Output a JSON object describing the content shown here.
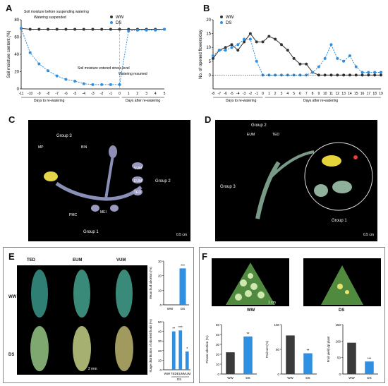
{
  "panels": {
    "A": {
      "letter": "A",
      "ylabel": "Soil moisture content (%)",
      "legend": [
        "WW",
        "DS"
      ],
      "annotations": [
        "Soil moisture before suspending watering",
        "Watering suspended",
        "Soil moisture entered stress level",
        "Watering resumed"
      ],
      "xaxis_left": "Days to re-watering",
      "xaxis_right": "Days after re-watering"
    },
    "B": {
      "letter": "B",
      "ylabel": "No. of opened flowers/day",
      "legend": [
        "WW",
        "DS"
      ],
      "xaxis_left": "Days to re-watering",
      "xaxis_right": "Days after re-watering"
    },
    "C": {
      "letter": "C",
      "labels": [
        "Group 3",
        "MP",
        "BIN",
        "VUM",
        "EUM",
        "TED",
        "Group 2",
        "PMC",
        "MEI",
        "Group 1"
      ],
      "scale": "0.5 cm"
    },
    "D": {
      "letter": "D",
      "labels": [
        "Group 2",
        "EUM",
        "TED",
        "Group 3",
        "Group 1"
      ],
      "scale": "0.5 cm"
    },
    "E": {
      "letter": "E",
      "col_labels": [
        "TED",
        "EUM",
        "VUM"
      ],
      "row_labels": [
        "WW",
        "DS"
      ],
      "scale": "2 mm",
      "top_ylabel": "Mean bud abortion (%)",
      "bottom_ylabel": "Stage distribution of aborted buds (%)",
      "ds_group": "DS"
    },
    "F": {
      "letter": "F",
      "photo_labels": [
        "WW",
        "DS"
      ],
      "scale": "1 cm",
      "ylabels": [
        "Flower abortion (%)",
        "Fruit set (%)",
        "Fruit yield /g/ plant"
      ]
    }
  },
  "chart_data": [
    {
      "type": "line",
      "title": "",
      "ylabel": "Soil moisture content (%)",
      "x": [
        -11,
        -10,
        -9,
        -8,
        -7,
        -6,
        -5,
        -4,
        -3,
        -2,
        -1,
        0,
        1,
        2,
        3,
        4,
        5
      ],
      "xticks": [
        "-11",
        "-10",
        "-9",
        "-8",
        "-7",
        "-6",
        "-5",
        "-4",
        "-3",
        "-2",
        "-1",
        "0",
        "1",
        "2",
        "3",
        "4",
        "5"
      ],
      "ylim": [
        0,
        80
      ],
      "yticks": [
        0,
        20,
        40,
        60,
        80
      ],
      "series": [
        {
          "name": "WW",
          "color": "#333333",
          "values": [
            70,
            69,
            69,
            69,
            69,
            69,
            69,
            69,
            69,
            69,
            69,
            69,
            69,
            69,
            69,
            69,
            69
          ]
        },
        {
          "name": "DS",
          "color": "#2f8fe0",
          "values": [
            70,
            42,
            29,
            21,
            15,
            11,
            9,
            6,
            5,
            5,
            5,
            5,
            67,
            68,
            68,
            68,
            69
          ]
        }
      ]
    },
    {
      "type": "line",
      "title": "",
      "ylabel": "No. of opened flowers/day",
      "x": [
        -8,
        -7,
        -6,
        -5,
        -4,
        -3,
        -2,
        -1,
        0,
        1,
        2,
        3,
        4,
        5,
        6,
        7,
        8,
        9,
        10,
        11,
        12,
        13,
        14,
        15,
        16,
        17,
        18,
        19
      ],
      "xticks": [
        "-8",
        "-7",
        "-6",
        "-5",
        "-4",
        "-3",
        "-2",
        "-1",
        "0",
        "1",
        "2",
        "3",
        "4",
        "5",
        "6",
        "7",
        "8",
        "9",
        "10",
        "11",
        "12",
        "13",
        "14",
        "15",
        "16",
        "17",
        "18",
        "19"
      ],
      "ylim": [
        -5,
        20
      ],
      "yticks": [
        0,
        5,
        10,
        15,
        20
      ],
      "series": [
        {
          "name": "WW",
          "color": "#333333",
          "values": [
            6,
            9,
            10,
            11,
            9,
            12,
            15,
            12,
            12,
            14,
            13,
            11,
            9,
            6,
            4,
            4,
            1,
            0,
            0,
            0,
            0,
            0,
            0,
            0,
            0,
            0,
            0,
            0
          ]
        },
        {
          "name": "DS",
          "color": "#2f8fe0",
          "values": [
            7,
            9,
            9,
            10,
            11,
            13,
            13,
            5,
            0,
            0,
            0,
            0,
            0,
            0,
            0,
            0,
            1,
            3,
            6,
            11,
            6,
            5,
            7,
            3,
            1,
            1,
            1,
            1
          ]
        }
      ]
    },
    {
      "type": "bar",
      "ylabel": "Mean bud abortion (%)",
      "categories": [
        "WW",
        "DS"
      ],
      "values": [
        0,
        25
      ],
      "ylim": [
        0,
        30
      ],
      "yticks": [
        0,
        10,
        20,
        30
      ],
      "labels": [
        "",
        "***"
      ]
    },
    {
      "type": "bar",
      "ylabel": "Stage distribution of aborted buds (%)",
      "categories": [
        "WW",
        "TED",
        "EUM",
        "VUM"
      ],
      "values": [
        0,
        40,
        41,
        19
      ],
      "ylim": [
        0,
        50
      ],
      "yticks": [
        0,
        10,
        20,
        30,
        40,
        50
      ],
      "labels": [
        "",
        "**",
        "***",
        "*"
      ]
    },
    {
      "type": "bar",
      "ylabel": "Flower abortion (%)",
      "categories": [
        "WW",
        "DS"
      ],
      "values": [
        22,
        38
      ],
      "ylim": [
        0,
        50
      ],
      "yticks": [
        0,
        10,
        20,
        30,
        40,
        50
      ],
      "labels": [
        "",
        "**"
      ]
    },
    {
      "type": "bar",
      "ylabel": "Fruit set (%)",
      "categories": [
        "WW",
        "DS"
      ],
      "values": [
        78,
        42
      ],
      "ylim": [
        0,
        100
      ],
      "yticks": [
        0,
        50,
        100
      ],
      "labels": [
        "",
        "**"
      ]
    },
    {
      "type": "bar",
      "ylabel": "Fruit yield /g/ plant",
      "categories": [
        "WW",
        "DS"
      ],
      "values": [
        95,
        38
      ],
      "ylim": [
        0,
        150
      ],
      "yticks": [
        0,
        50,
        100,
        150
      ],
      "labels": [
        "",
        "***"
      ]
    }
  ],
  "colors": {
    "ww": "#333333",
    "ds": "#2f8fe0",
    "bar_ww": "#3a3a3a",
    "bar_ds": "#2f8fe0"
  }
}
